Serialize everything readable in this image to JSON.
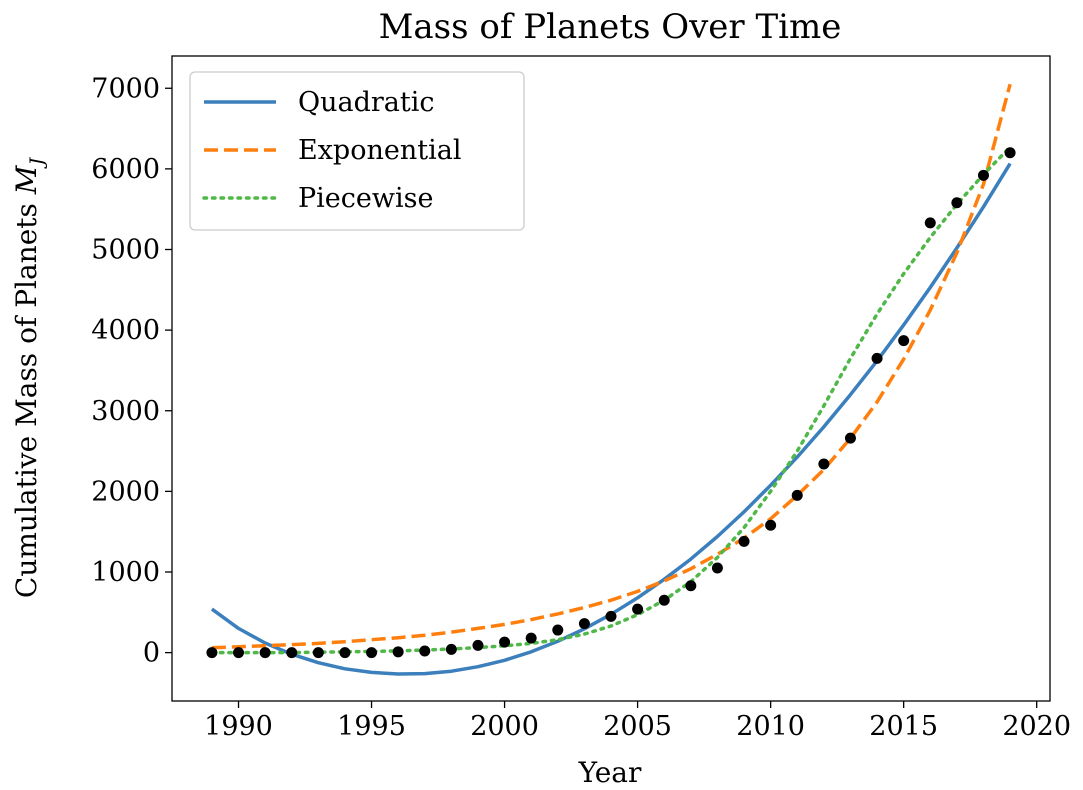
{
  "chart_data": {
    "type": "scatter",
    "title": "Mass of Planets Over Time",
    "xlabel": "Year",
    "ylabel": "Cumulative Mass of Planets",
    "ylabel_symbol": "M",
    "ylabel_subscript": "J",
    "xlim": [
      1987.5,
      2020.5
    ],
    "ylim": [
      -600,
      7400
    ],
    "xticks": [
      1990,
      1995,
      2000,
      2005,
      2010,
      2015,
      2020
    ],
    "yticks": [
      0,
      1000,
      2000,
      3000,
      4000,
      5000,
      6000,
      7000
    ],
    "grid": false,
    "legend_position": "upper left",
    "points": {
      "x": [
        1989,
        1990,
        1991,
        1992,
        1993,
        1994,
        1995,
        1996,
        1997,
        1998,
        1999,
        2000,
        2001,
        2002,
        2003,
        2004,
        2005,
        2006,
        2007,
        2008,
        2009,
        2010,
        2011,
        2012,
        2013,
        2014,
        2015,
        2016,
        2017,
        2018,
        2019
      ],
      "y": [
        0,
        0,
        0,
        0,
        0,
        0,
        0,
        10,
        20,
        40,
        90,
        130,
        180,
        280,
        360,
        450,
        540,
        650,
        830,
        1050,
        1380,
        1580,
        1950,
        2340,
        2660,
        3650,
        3870,
        5330,
        5580,
        5920,
        6200
      ],
      "color": "#000000"
    },
    "series": [
      {
        "name": "Quadratic",
        "style": "solid",
        "color": "#3b7fbd",
        "x": [
          1989,
          1990,
          1991,
          1992,
          1993,
          1994,
          1995,
          1996,
          1997,
          1998,
          1999,
          2000,
          2001,
          2002,
          2003,
          2004,
          2005,
          2006,
          2007,
          2008,
          2009,
          2010,
          2011,
          2012,
          2013,
          2014,
          2015,
          2016,
          2017,
          2018,
          2019
        ],
        "y": [
          540,
          300,
          120,
          -20,
          -125,
          -200,
          -245,
          -265,
          -260,
          -230,
          -175,
          -95,
          10,
          140,
          295,
          475,
          680,
          910,
          1160,
          1440,
          1745,
          2075,
          2425,
          2800,
          3200,
          3620,
          4065,
          4530,
          5020,
          5530,
          6065
        ]
      },
      {
        "name": "Exponential",
        "style": "dashed",
        "color": "#ff7f0e",
        "x": [
          1989,
          1990,
          1991,
          1992,
          1993,
          1994,
          1995,
          1996,
          1997,
          1998,
          1999,
          2000,
          2001,
          2002,
          2003,
          2004,
          2005,
          2006,
          2007,
          2008,
          2009,
          2010,
          2011,
          2012,
          2013,
          2014,
          2015,
          2016,
          2017,
          2018,
          2019
        ],
        "y": [
          60,
          72,
          86,
          100,
          115,
          135,
          160,
          185,
          215,
          255,
          300,
          350,
          410,
          480,
          560,
          650,
          760,
          890,
          1040,
          1220,
          1420,
          1660,
          1950,
          2270,
          2660,
          3110,
          3640,
          4250,
          4960,
          5810,
          7050
        ]
      },
      {
        "name": "Piecewise",
        "style": "dotted",
        "color": "#4fb848",
        "x": [
          1989,
          1990,
          1991,
          1992,
          1993,
          1994,
          1995,
          1996,
          1997,
          1998,
          1999,
          2000,
          2001,
          2002,
          2003,
          2004,
          2005,
          2006,
          2007,
          2008,
          2009,
          2010,
          2011,
          2012,
          2013,
          2014,
          2015,
          2016,
          2017,
          2018,
          2019
        ],
        "y": [
          0,
          0,
          0,
          0,
          5,
          10,
          15,
          22,
          32,
          45,
          62,
          85,
          115,
          160,
          230,
          330,
          470,
          650,
          880,
          1180,
          1550,
          2000,
          2500,
          3060,
          3650,
          4200,
          4700,
          5150,
          5560,
          5930,
          6270
        ]
      }
    ]
  }
}
